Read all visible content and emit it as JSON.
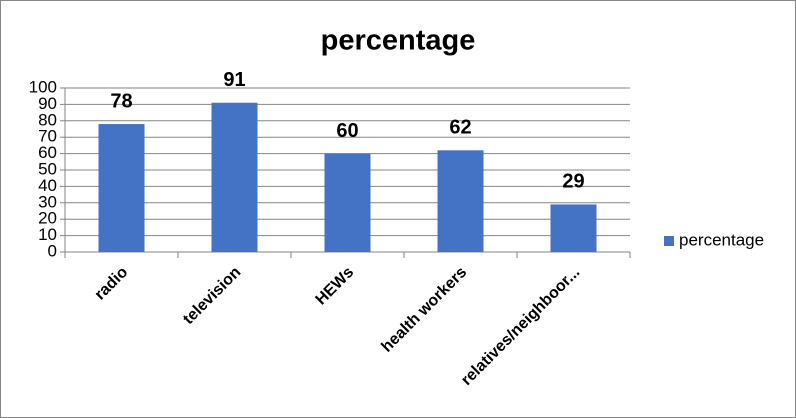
{
  "chart_data": {
    "type": "bar",
    "title": "percentage",
    "categories": [
      "radio",
      "television",
      "HEWs",
      "health workers",
      "relatives/neighboor..."
    ],
    "series": [
      {
        "name": "percentage",
        "color": "#4472c4",
        "values": [
          78,
          91,
          60,
          62,
          29
        ]
      }
    ],
    "ylim": [
      0,
      100
    ],
    "yticks": [
      0,
      10,
      20,
      30,
      40,
      50,
      60,
      70,
      80,
      90,
      100
    ],
    "grid": true,
    "legend": "right",
    "data_labels": true
  }
}
